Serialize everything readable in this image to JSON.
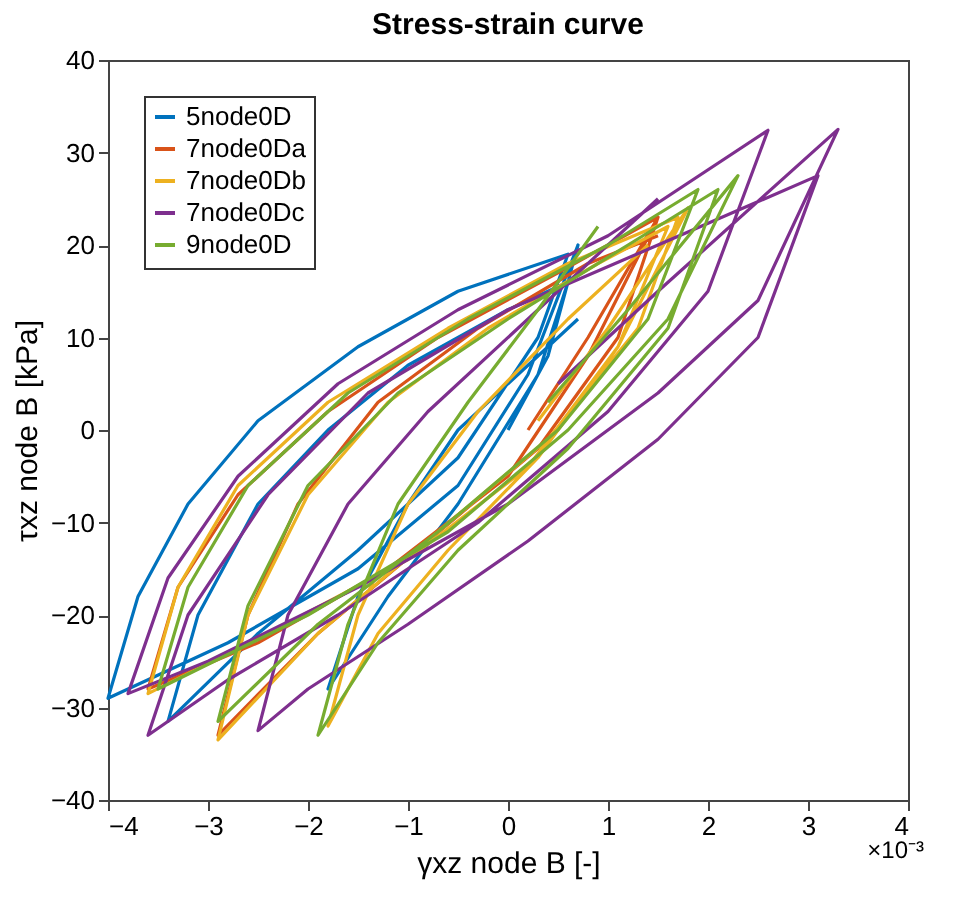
{
  "chart_data": {
    "type": "line",
    "title": "Stress-strain curve",
    "xlabel": "γxz node B [-]",
    "ylabel": "τxz node B [kPa]",
    "annotations": [
      "×10⁻³"
    ],
    "xlim": [
      -4,
      4
    ],
    "xticks": [
      -4,
      -3,
      -2,
      -1,
      0,
      1,
      2,
      3,
      4
    ],
    "ylim": [
      -40,
      40
    ],
    "yticks": [
      -40,
      -30,
      -20,
      -10,
      0,
      10,
      20,
      30,
      40
    ],
    "grid": false,
    "legend": "top left",
    "line_style": "solid",
    "marker": "none",
    "series": [
      {
        "name": "5node0D",
        "color": "#0072bd",
        "x": [
          0,
          0.4,
          0.7,
          0.2,
          -0.5,
          -1.5,
          -2.8,
          -4,
          -3.7,
          -3.2,
          -2.5,
          -1.5,
          -0.5,
          0.6,
          0.3,
          -0.5,
          -1.5,
          -2.5,
          -3.4,
          -3.1,
          -2.5,
          -1.8,
          -1,
          0,
          0.6,
          0.3,
          -0.5,
          -1.2,
          -1.8,
          -1.5,
          -1,
          -0.5,
          0.2,
          0.7
        ],
        "values": [
          0,
          8,
          20,
          6,
          -6,
          -15,
          -23,
          -29,
          -18,
          -8,
          1,
          9,
          15,
          19,
          10,
          -3,
          -13,
          -22,
          -31.5,
          -20,
          -8,
          0,
          7,
          13,
          16,
          6,
          -8,
          -18,
          -28,
          -18,
          -8,
          0,
          7,
          12
        ]
      },
      {
        "name": "7node0Da",
        "color": "#d95319",
        "x": [
          0.2,
          0.8,
          1.5,
          0.8,
          0,
          -1.2,
          -2.5,
          -3.6,
          -3.3,
          -2.7,
          -1.8,
          -0.7,
          0.5,
          1.5,
          1.1,
          0.3,
          -0.8,
          -1.9,
          -2.9,
          -2.6,
          -2.1,
          -1.3,
          -0.3,
          0.8,
          1.5
        ],
        "values": [
          0,
          10,
          23,
          8,
          -5,
          -15,
          -23,
          -28,
          -17,
          -7,
          2,
          10,
          17,
          23,
          10,
          -2,
          -12,
          -22,
          -33,
          -20,
          -8,
          3,
          11,
          18,
          21
        ]
      },
      {
        "name": "7node0Db",
        "color": "#edb120",
        "x": [
          0.3,
          1,
          1.8,
          1.1,
          0.2,
          -1,
          -2.4,
          -3.6,
          -3.3,
          -2.7,
          -1.8,
          -0.6,
          0.6,
          1.7,
          1.3,
          0.4,
          -0.7,
          -1.9,
          -2.9,
          -2.6,
          -2,
          -1.2,
          -0.2,
          0.9,
          1.6,
          1.1,
          0.3,
          -0.6,
          -1.3,
          -1.8,
          -1.5,
          -1,
          -0.3,
          0.6,
          1.4
        ],
        "values": [
          1,
          11,
          24,
          9,
          -4,
          -14,
          -22,
          -28.5,
          -17,
          -6,
          3,
          11,
          18,
          23,
          11,
          -1,
          -11,
          -22,
          -33.5,
          -20,
          -7,
          3,
          11,
          18,
          22,
          9,
          -3,
          -13,
          -22,
          -32,
          -20,
          -8,
          2,
          12,
          20
        ]
      },
      {
        "name": "7node0Dc",
        "color": "#7e2f8e",
        "x": [
          0.5,
          1.5,
          3.3,
          2.5,
          1.5,
          0,
          -1.5,
          -3,
          -3.8,
          -3.4,
          -2.7,
          -1.7,
          -0.5,
          1,
          2.6,
          2,
          1,
          -0.3,
          -1.7,
          -2.8,
          -3.6,
          -3.2,
          -2.4,
          -1.4,
          0,
          1.5,
          3.1,
          2.5,
          1.5,
          0.2,
          -1,
          -2,
          -2.5,
          -2.2,
          -1.6,
          -0.8,
          0.2,
          1.5
        ],
        "values": [
          5,
          15,
          32.5,
          14,
          4,
          -8,
          -17,
          -25,
          -28.5,
          -16,
          -5,
          5,
          13,
          21,
          32.4,
          15,
          2,
          -10,
          -20,
          -27,
          -33,
          -20,
          -7,
          4,
          13,
          20,
          27.5,
          10,
          -1,
          -12,
          -21,
          -28,
          -32.5,
          -20,
          -8,
          2,
          12,
          25
        ]
      },
      {
        "name": "9node0D",
        "color": "#77ac30",
        "x": [
          0.4,
          1.2,
          2.3,
          1.6,
          0.6,
          -0.6,
          -2,
          -3.5,
          -3.2,
          -2.6,
          -1.6,
          -0.4,
          1,
          1.9,
          1.4,
          0.5,
          -0.7,
          -1.9,
          -2.9,
          -2.6,
          -2,
          -1.1,
          0,
          1.2,
          2.1,
          1.6,
          0.6,
          -0.5,
          -1.3,
          -1.9,
          -1.6,
          -1.1,
          -0.4,
          0.3,
          0.9
        ],
        "values": [
          3,
          13,
          27.5,
          12,
          0,
          -11,
          -20,
          -28,
          -17,
          -6,
          4,
          12,
          20,
          26,
          12,
          0,
          -11,
          -21,
          -31.5,
          -19,
          -6,
          4,
          12,
          20,
          26,
          11,
          -2,
          -13,
          -23,
          -33,
          -21,
          -8,
          3,
          13,
          22
        ]
      }
    ]
  }
}
